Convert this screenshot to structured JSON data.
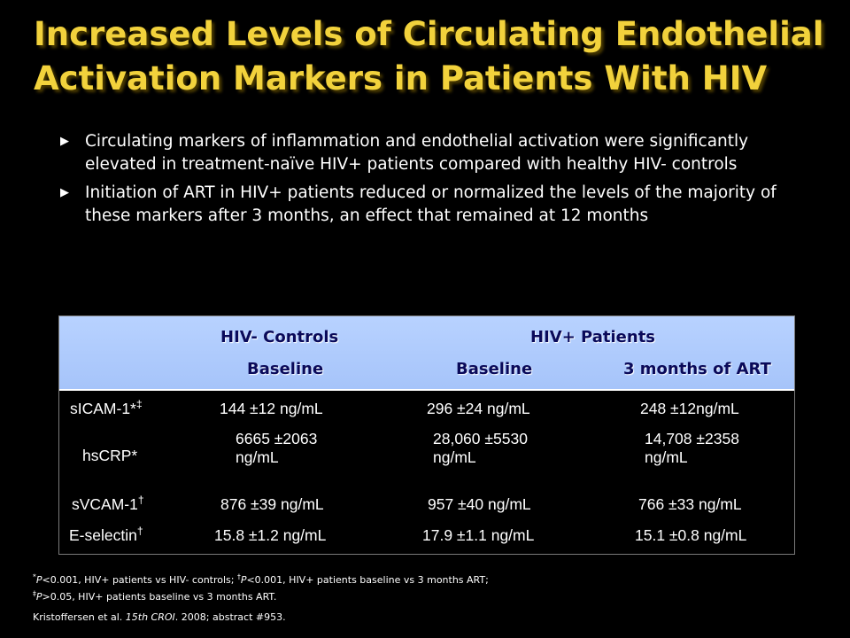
{
  "title": {
    "line1": "Increased Levels of Circulating Endothelial",
    "line2": "Activation Markers in Patients With HIV"
  },
  "bullets": [
    "Circulating markers of  inflammation and endothelial activation were significantly elevated in treatment-naïve HIV+ patients compared with healthy HIV- controls",
    "Initiation of ART in HIV+ patients reduced or normalized the levels of the majority of these markers after 3 months, an effect that remained at 12 months"
  ],
  "table": {
    "group_controls": "HIV- Controls",
    "group_patients": "HIV+ Patients",
    "col_controls_baseline": "Baseline",
    "col_patients_baseline": "Baseline",
    "col_patients_art": "3 months of ART",
    "rows": [
      {
        "marker": "sICAM-1*",
        "sup": "‡",
        "controls": "144 ±12 ng/mL",
        "patients_baseline": "296 ±24 ng/mL",
        "patients_art": "248 ±12ng/mL"
      },
      {
        "marker": "hsCRP*",
        "sup": "",
        "controls": "6665 ±2063 ng/mL",
        "patients_baseline": "28,060 ±5530 ng/mL",
        "patients_art": "14,708 ±2358 ng/mL"
      },
      {
        "marker": "sVCAM-1",
        "sup": "†",
        "controls": "876 ±39 ng/mL",
        "patients_baseline": "957 ±40 ng/mL",
        "patients_art": "766 ±33 ng/mL"
      },
      {
        "marker": "E-selectin",
        "sup": "†",
        "controls": "15.8 ±1.2 ng/mL",
        "patients_baseline": "17.9 ±1.1 ng/mL",
        "patients_art": "15.1 ±0.8 ng/mL"
      }
    ]
  },
  "footnotes": {
    "line1_star": "*",
    "line1_p1": "P",
    "line1_a": "<0.001, HIV+ patients vs HIV- controls; ",
    "line1_dagger": "†",
    "line1_p2": "P",
    "line1_b": "<0.001, HIV+ patients baseline vs 3 months ART;",
    "line2_ddagger": "‡",
    "line2_p": "P",
    "line2_text": ">0.05, HIV+ patients baseline vs 3 months ART.",
    "ref_a": "Kristoffersen et al. ",
    "ref_journal": "15th CROI",
    "ref_b": ". 2008; abstract #953."
  }
}
